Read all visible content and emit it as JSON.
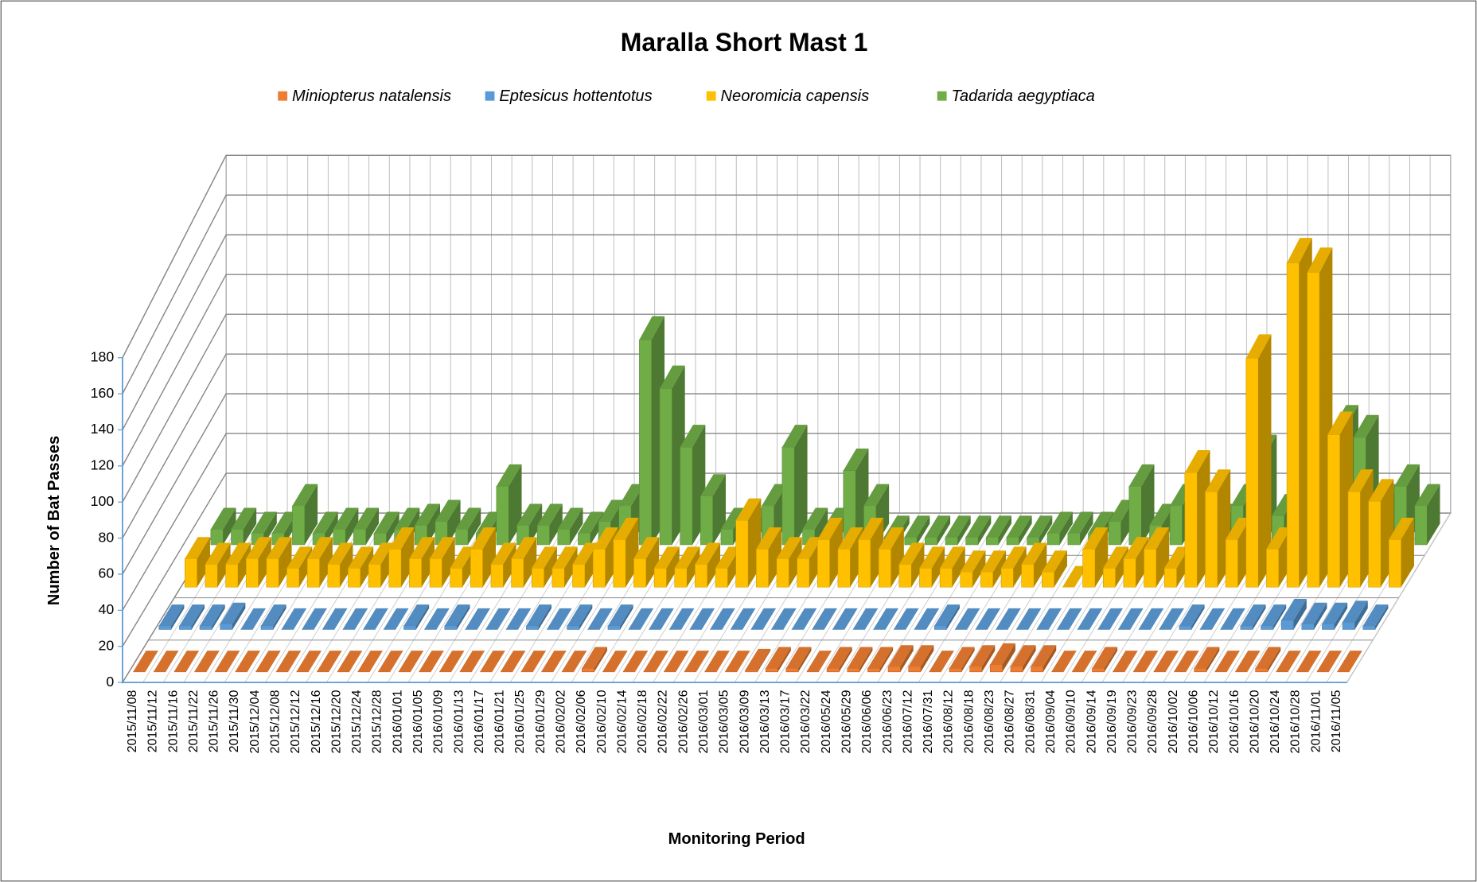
{
  "chart_data": {
    "type": "bar3d",
    "title": "Maralla Short Mast 1",
    "y_label": "Number of Bat Passes",
    "x_label": "Monitoring Period",
    "ylim": [
      0,
      180
    ],
    "yticks": [
      0,
      20,
      40,
      60,
      80,
      100,
      120,
      140,
      160,
      180
    ],
    "grid": true,
    "legend": "top",
    "categories": [
      "2015/11/08",
      "2015/11/12",
      "2015/11/16",
      "2015/11/22",
      "2015/11/26",
      "2015/11/30",
      "2015/12/04",
      "2015/12/08",
      "2015/12/12",
      "2015/12/16",
      "2015/12/20",
      "2015/12/24",
      "2015/12/28",
      "2016/01/01",
      "2016/01/05",
      "2016/01/09",
      "2016/01/13",
      "2016/01/17",
      "2016/01/21",
      "2016/01/25",
      "2016/01/29",
      "2016/02/02",
      "2016/02/06",
      "2016/02/10",
      "2016/02/14",
      "2016/02/18",
      "2016/02/22",
      "2016/02/26",
      "2016/03/01",
      "2016/03/05",
      "2016/03/09",
      "2016/03/13",
      "2016/03/17",
      "2016/03/22",
      "2016/05/24",
      "2016/05/29",
      "2016/06/06",
      "2016/06/23",
      "2016/07/12",
      "2016/07/31",
      "2016/08/12",
      "2016/08/18",
      "2016/08/23",
      "2016/08/27",
      "2016/08/31",
      "2016/09/04",
      "2016/09/10",
      "2016/09/14",
      "2016/09/19",
      "2016/09/23",
      "2016/09/28",
      "2016/10/02",
      "2016/10/06",
      "2016/10/12",
      "2016/10/16",
      "2016/10/20",
      "2016/10/24",
      "2016/10/28",
      "2016/11/01",
      "2016/11/05"
    ],
    "series": [
      {
        "name": "Miniopterus natalensis",
        "color": "#ed7d31",
        "values": [
          0,
          0,
          0,
          0,
          0,
          0,
          0,
          0,
          0,
          0,
          0,
          0,
          0,
          0,
          0,
          0,
          0,
          0,
          0,
          0,
          0,
          0,
          2,
          0,
          0,
          0,
          0,
          0,
          0,
          0,
          1,
          2,
          2,
          0,
          2,
          2,
          2,
          3,
          3,
          0,
          2,
          3,
          4,
          3,
          3,
          0,
          0,
          2,
          0,
          0,
          0,
          0,
          2,
          0,
          0,
          2,
          0,
          0,
          0,
          0
        ]
      },
      {
        "name": "Eptesicus hottentotus",
        "color": "#5b9bd5",
        "values": [
          2,
          2,
          2,
          3,
          0,
          2,
          0,
          0,
          0,
          0,
          0,
          0,
          2,
          0,
          2,
          0,
          0,
          0,
          2,
          0,
          2,
          0,
          2,
          0,
          0,
          0,
          0,
          0,
          0,
          0,
          0,
          0,
          0,
          0,
          0,
          0,
          0,
          0,
          2,
          0,
          0,
          0,
          0,
          0,
          0,
          0,
          0,
          0,
          0,
          0,
          2,
          0,
          0,
          2,
          2,
          5,
          3,
          3,
          4,
          2
        ]
      },
      {
        "name": "Neoromicia capensis",
        "color": "#ffc000",
        "values": [
          15,
          12,
          12,
          15,
          15,
          10,
          15,
          12,
          10,
          12,
          20,
          15,
          15,
          10,
          20,
          12,
          15,
          10,
          10,
          12,
          20,
          25,
          15,
          10,
          10,
          12,
          10,
          35,
          20,
          15,
          15,
          25,
          20,
          25,
          20,
          12,
          10,
          10,
          8,
          8,
          10,
          12,
          8,
          0,
          20,
          10,
          15,
          20,
          10,
          60,
          50,
          25,
          120,
          20,
          170,
          165,
          80,
          50,
          45,
          25
        ]
      },
      {
        "name": "Tadarida aegyptiaca",
        "color": "#70ad47",
        "values": [
          8,
          8,
          6,
          6,
          20,
          6,
          8,
          8,
          6,
          8,
          10,
          12,
          8,
          6,
          30,
          10,
          10,
          8,
          6,
          12,
          20,
          105,
          80,
          50,
          25,
          8,
          8,
          20,
          50,
          8,
          8,
          38,
          20,
          4,
          4,
          4,
          4,
          4,
          4,
          4,
          4,
          6,
          6,
          6,
          12,
          30,
          10,
          20,
          8,
          10,
          20,
          45,
          15,
          10,
          30,
          60,
          55,
          20,
          30,
          20
        ]
      }
    ]
  }
}
